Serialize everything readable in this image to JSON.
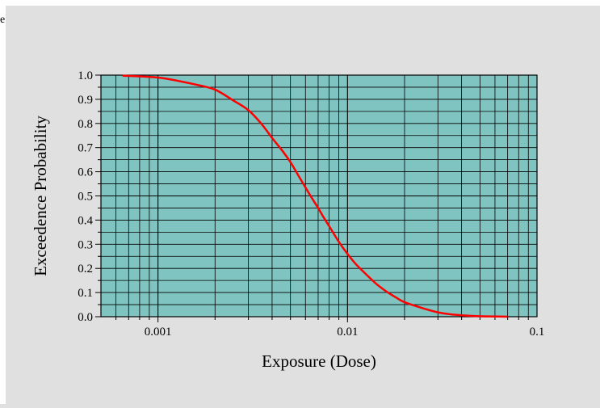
{
  "chart_data": {
    "type": "line",
    "title": "",
    "xlabel": "Exposure (Dose)",
    "ylabel": "Exceedence Probability",
    "x_scale": "log",
    "xlim": [
      0.0005,
      0.1
    ],
    "ylim": [
      0.0,
      1.0
    ],
    "x_ticks": [
      0.001,
      0.01,
      0.1
    ],
    "x_tick_labels": [
      "0.001",
      "0.01",
      "0.1"
    ],
    "y_ticks": [
      0.0,
      0.1,
      0.2,
      0.3,
      0.4,
      0.5,
      0.6,
      0.7,
      0.8,
      0.9,
      1.0
    ],
    "y_tick_labels": [
      "0.0",
      "0.1",
      "0.2",
      "0.3",
      "0.4",
      "0.5",
      "0.6",
      "0.7",
      "0.8",
      "0.9",
      "1.0"
    ],
    "grid": true,
    "legend": "none",
    "plot_background": "#7fc4c0",
    "page_background": "#e0e0e0",
    "series": [
      {
        "color": "#ff0000",
        "x": [
          0.00065,
          0.001,
          0.0013,
          0.0016,
          0.002,
          0.0025,
          0.003,
          0.0035,
          0.004,
          0.0045,
          0.005,
          0.0055,
          0.006,
          0.0065,
          0.007,
          0.0075,
          0.008,
          0.009,
          0.01,
          0.011,
          0.012,
          0.014,
          0.016,
          0.018,
          0.02,
          0.025,
          0.03,
          0.035,
          0.04,
          0.05,
          0.06,
          0.07
        ],
        "y": [
          0.998,
          0.99,
          0.975,
          0.96,
          0.94,
          0.895,
          0.855,
          0.8,
          0.74,
          0.69,
          0.64,
          0.585,
          0.535,
          0.49,
          0.45,
          0.41,
          0.375,
          0.31,
          0.26,
          0.22,
          0.19,
          0.14,
          0.105,
          0.08,
          0.06,
          0.035,
          0.018,
          0.01,
          0.006,
          0.002,
          0.001,
          0.0
        ]
      }
    ]
  },
  "fragment": "e"
}
